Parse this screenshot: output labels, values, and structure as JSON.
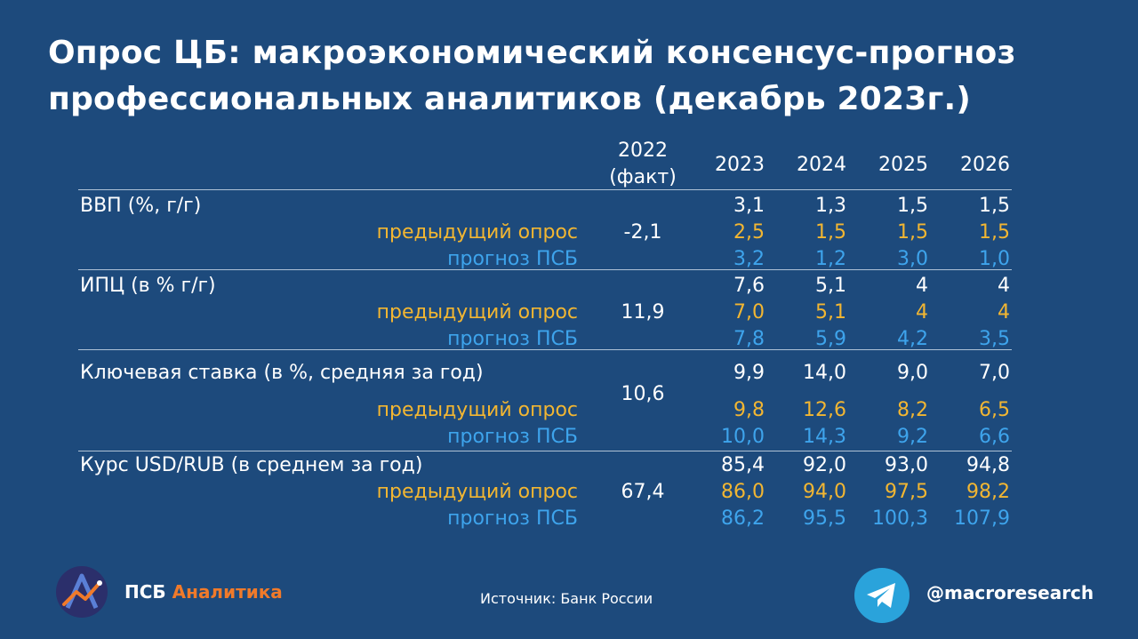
{
  "title": {
    "line1": "Опрос ЦБ: макроэкономический консенсус-прогноз",
    "line2": "профессиональных аналитиков (декабрь 2023г.)"
  },
  "table": {
    "headers": {
      "fact_line1": "2022",
      "fact_line2": "(факт)",
      "years": [
        "2023",
        "2024",
        "2025",
        "2026"
      ]
    },
    "sublabels": {
      "prev": "предыдущий опрос",
      "psb": "прогноз ПСБ"
    },
    "groups": [
      {
        "label": "ВВП (%, г/г)",
        "fact": "-2,1",
        "main": [
          "3,1",
          "1,3",
          "1,5",
          "1,5"
        ],
        "prev": [
          "2,5",
          "1,5",
          "1,5",
          "1,5"
        ],
        "psb": [
          "3,2",
          "1,2",
          "3,0",
          "1,0"
        ]
      },
      {
        "label": "ИПЦ (в % г/г)",
        "fact": "11,9",
        "main": [
          "7,6",
          "5,1",
          "4",
          "4"
        ],
        "prev": [
          "7,0",
          "5,1",
          "4",
          "4"
        ],
        "psb": [
          "7,8",
          "5,9",
          "4,2",
          "3,5"
        ]
      },
      {
        "label": "Ключевая ставка (в %, средняя за год)",
        "fact": "10,6",
        "main": [
          "9,9",
          "14,0",
          "9,0",
          "7,0"
        ],
        "prev": [
          "9,8",
          "12,6",
          "8,2",
          "6,5"
        ],
        "psb": [
          "10,0",
          "14,3",
          "9,2",
          "6,6"
        ]
      },
      {
        "label": "Курс USD/RUB (в среднем за год)",
        "fact": "67,4",
        "main": [
          "85,4",
          "92,0",
          "93,0",
          "94,8"
        ],
        "prev": [
          "86,0",
          "94,0",
          "97,5",
          "98,2"
        ],
        "psb": [
          "86,2",
          "95,5",
          "100,3",
          "107,9"
        ]
      }
    ]
  },
  "footer": {
    "brand_part1": "ПСБ",
    "brand_part2": "Аналитика",
    "source": "Источник: Банк России",
    "handle": "@macroresearch",
    "logo_icon": "psb-logo-icon",
    "telegram_icon": "telegram-icon"
  },
  "colors": {
    "background": "#1d4a7c",
    "main_text": "#ffffff",
    "previous_survey": "#f2b632",
    "psb_forecast": "#3ea4ec",
    "brand_accent": "#f07a2a",
    "telegram": "#2aa3db"
  }
}
